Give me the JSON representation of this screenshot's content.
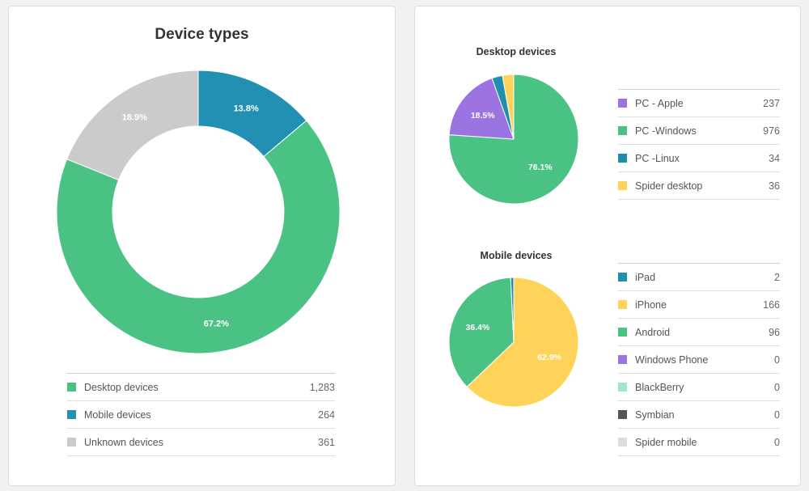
{
  "device_types": {
    "title": "Device types",
    "legend": [
      {
        "label": "Desktop devices",
        "value": "1,283",
        "color": "#4ac284"
      },
      {
        "label": "Mobile devices",
        "value": "264",
        "color": "#2290b2"
      },
      {
        "label": "Unknown devices",
        "value": "361",
        "color": "#cbcbcb"
      }
    ]
  },
  "desktop_devices": {
    "title": "Desktop devices",
    "legend": [
      {
        "label": "PC - Apple",
        "value": "237",
        "color": "#9c74e2"
      },
      {
        "label": "PC -Windows",
        "value": "976",
        "color": "#4ac284"
      },
      {
        "label": "PC -Linux",
        "value": "34",
        "color": "#1f8fb0"
      },
      {
        "label": "Spider desktop",
        "value": "36",
        "color": "#ffd35a"
      }
    ]
  },
  "mobile_devices": {
    "title": "Mobile devices",
    "legend": [
      {
        "label": "iPad",
        "value": "2",
        "color": "#1f8fb0"
      },
      {
        "label": "iPhone",
        "value": "166",
        "color": "#ffd35a"
      },
      {
        "label": "Android",
        "value": "96",
        "color": "#4ac284"
      },
      {
        "label": "Windows Phone",
        "value": "0",
        "color": "#9c74e2"
      },
      {
        "label": "BlackBerry",
        "value": "0",
        "color": "#9ee8c5"
      },
      {
        "label": "Symbian",
        "value": "0",
        "color": "#555555"
      },
      {
        "label": "Spider mobile",
        "value": "0",
        "color": "#dddddd"
      }
    ]
  },
  "chart_data": [
    {
      "type": "pie",
      "variant": "donut",
      "title": "Device types",
      "start_slice": "Mobile devices",
      "slices": [
        {
          "name": "Mobile devices",
          "value": 264,
          "percent_label": "13.8%",
          "color": "#2290b2"
        },
        {
          "name": "Desktop devices",
          "value": 1283,
          "percent_label": "67.2%",
          "color": "#4ac284"
        },
        {
          "name": "Unknown devices",
          "value": 361,
          "percent_label": "18.9%",
          "color": "#cbcbcb"
        }
      ]
    },
    {
      "type": "pie",
      "title": "Desktop devices",
      "slices": [
        {
          "name": "PC -Windows",
          "value": 976,
          "percent_label": "76.1%",
          "color": "#4ac284"
        },
        {
          "name": "PC - Apple",
          "value": 237,
          "percent_label": "18.5%",
          "color": "#9c74e2"
        },
        {
          "name": "PC -Linux",
          "value": 34,
          "percent_label": "",
          "color": "#1f8fb0"
        },
        {
          "name": "Spider desktop",
          "value": 36,
          "percent_label": "",
          "color": "#ffd35a"
        }
      ]
    },
    {
      "type": "pie",
      "title": "Mobile devices",
      "slices": [
        {
          "name": "iPhone",
          "value": 166,
          "percent_label": "62.9%",
          "color": "#ffd35a"
        },
        {
          "name": "Android",
          "value": 96,
          "percent_label": "36.4%",
          "color": "#4ac284"
        },
        {
          "name": "iPad",
          "value": 2,
          "percent_label": "",
          "color": "#1f8fb0"
        }
      ]
    }
  ]
}
